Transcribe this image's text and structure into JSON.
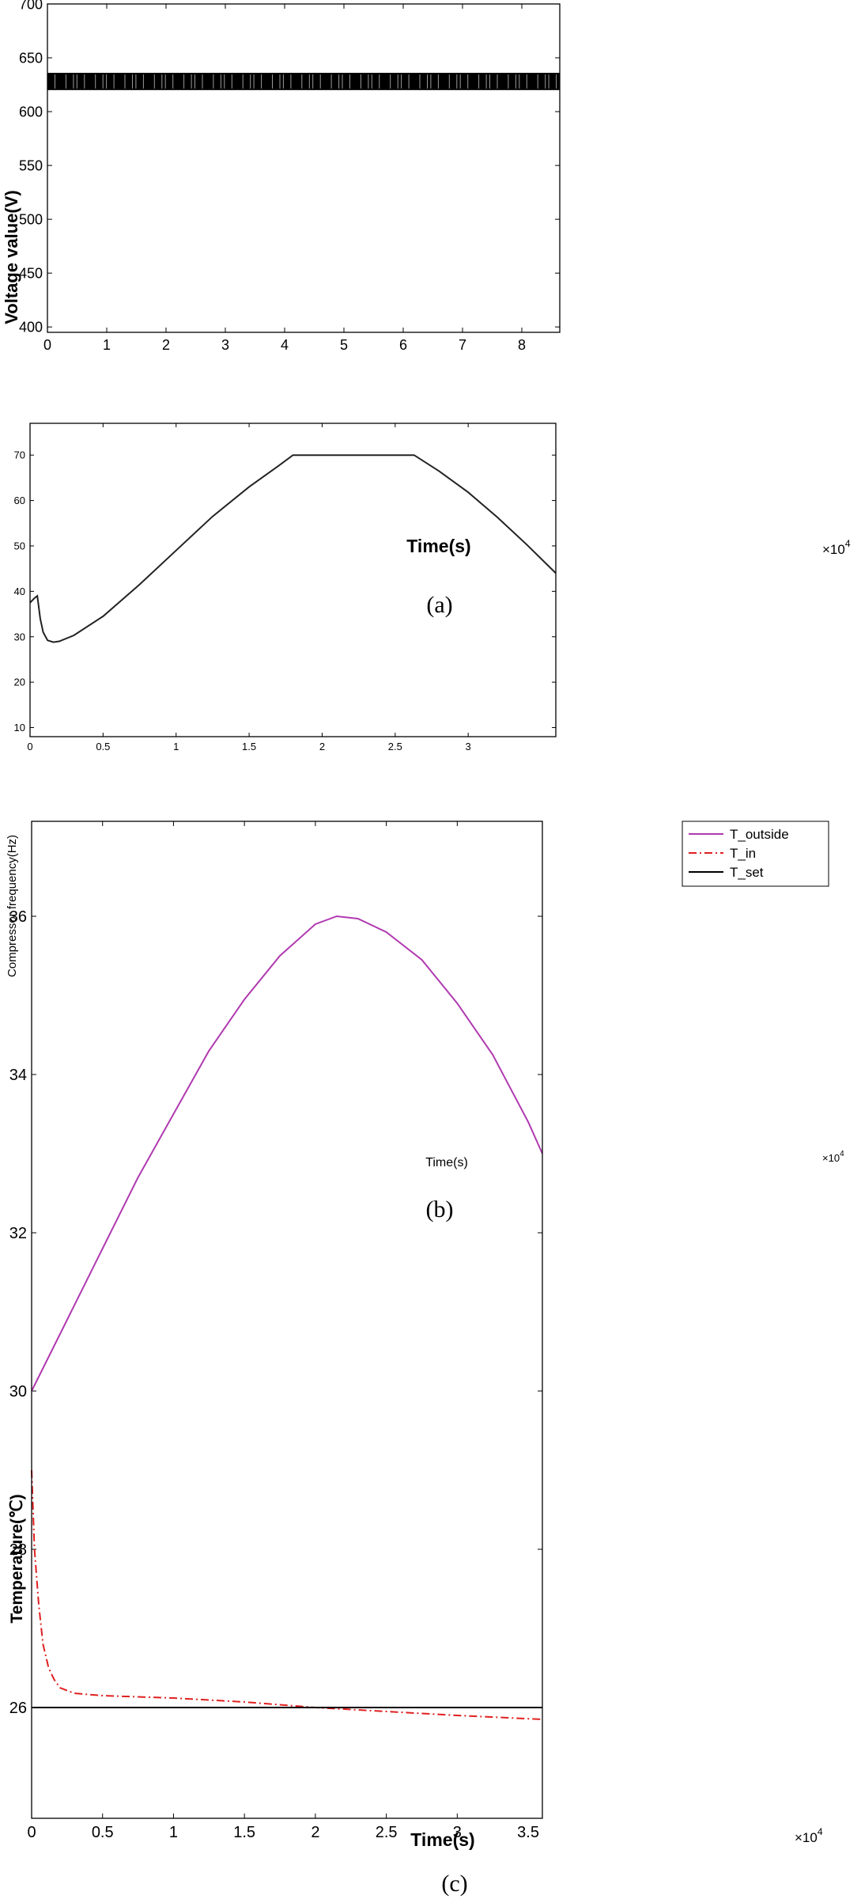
{
  "chart_data": [
    {
      "id": "a",
      "type": "line",
      "caption": "(a)",
      "xlabel": "Time(s)",
      "ylabel": "Voltage value(V)",
      "x_multiplier_label": "×10",
      "x_multiplier_exp": "4",
      "xlim": [
        0,
        8.64
      ],
      "ylim": [
        395,
        700
      ],
      "xticks": [
        0,
        1,
        2,
        3,
        4,
        5,
        6,
        7,
        8
      ],
      "yticks": [
        400,
        450,
        500,
        550,
        600,
        650,
        700
      ],
      "series": [
        {
          "style": "band",
          "color": "#000000",
          "x_range": [
            0,
            8.64
          ],
          "y_min": 620,
          "y_max": 636
        }
      ]
    },
    {
      "id": "b",
      "type": "line",
      "caption": "(b)",
      "xlabel": "Time(s)",
      "ylabel": "Compressor frequency(Hz)",
      "x_multiplier_label": "×10",
      "x_multiplier_exp": "4",
      "xlim": [
        0,
        3.6
      ],
      "ylim": [
        8,
        77
      ],
      "xticks": [
        0,
        0.5,
        1,
        1.5,
        2,
        2.5,
        3
      ],
      "yticks": [
        10,
        20,
        30,
        40,
        50,
        60,
        70
      ],
      "series": [
        {
          "color": "#222222",
          "x": [
            0,
            0.03,
            0.05,
            0.07,
            0.09,
            0.12,
            0.16,
            0.2,
            0.3,
            0.5,
            0.75,
            1.0,
            1.25,
            1.5,
            1.7,
            1.8,
            2.0,
            2.3,
            2.63,
            2.8,
            3.0,
            3.2,
            3.4,
            3.6
          ],
          "y": [
            37.5,
            38.5,
            39,
            34,
            31,
            29.2,
            28.8,
            29,
            30.3,
            34.5,
            41.5,
            49,
            56.5,
            63,
            67.6,
            70,
            70,
            70,
            70,
            66.5,
            61.8,
            56.3,
            50.3,
            44
          ]
        }
      ]
    },
    {
      "id": "c",
      "type": "line",
      "caption": "(c)",
      "xlabel": "Time(s)",
      "ylabel": "Temperature(℃)",
      "x_multiplier_label": "×10",
      "x_multiplier_exp": "4",
      "xlim": [
        0,
        3.6
      ],
      "ylim": [
        24.6,
        37.2
      ],
      "xticks": [
        0,
        0.5,
        1,
        1.5,
        2,
        2.5,
        3
      ],
      "xtick_labels": [
        "0",
        "0.5",
        "1",
        "1.5",
        "2",
        "2.5",
        "3",
        "3.5"
      ],
      "xticks_labeled": [
        0,
        0.5,
        1,
        1.5,
        2,
        2.5,
        3,
        3.5
      ],
      "yticks": [
        26,
        28,
        30,
        32,
        34,
        36
      ],
      "legend_position": "top-right",
      "series": [
        {
          "name": "T_outside",
          "color": "#b03ab0",
          "dash": "solid",
          "x": [
            0,
            0.25,
            0.5,
            0.75,
            1.0,
            1.25,
            1.5,
            1.75,
            2.0,
            2.15,
            2.3,
            2.5,
            2.75,
            3.0,
            3.25,
            3.5,
            3.6
          ],
          "y": [
            30,
            30.9,
            31.8,
            32.7,
            33.5,
            34.3,
            34.95,
            35.5,
            35.9,
            36,
            35.97,
            35.8,
            35.45,
            34.9,
            34.25,
            33.4,
            33
          ]
        },
        {
          "name": "T_in",
          "color": "#e02020",
          "dash": "dashdot",
          "x": [
            0,
            0.02,
            0.05,
            0.08,
            0.12,
            0.16,
            0.2,
            0.3,
            0.5,
            1.0,
            1.5,
            2.0,
            2.5,
            3.0,
            3.6
          ],
          "y": [
            29,
            28,
            27.3,
            26.8,
            26.5,
            26.35,
            26.25,
            26.18,
            26.15,
            26.12,
            26.07,
            26.0,
            25.95,
            25.9,
            25.85
          ]
        },
        {
          "name": "T_set",
          "color": "#000000",
          "dash": "solid",
          "x": [
            0,
            3.6
          ],
          "y": [
            26,
            26
          ]
        }
      ]
    }
  ]
}
